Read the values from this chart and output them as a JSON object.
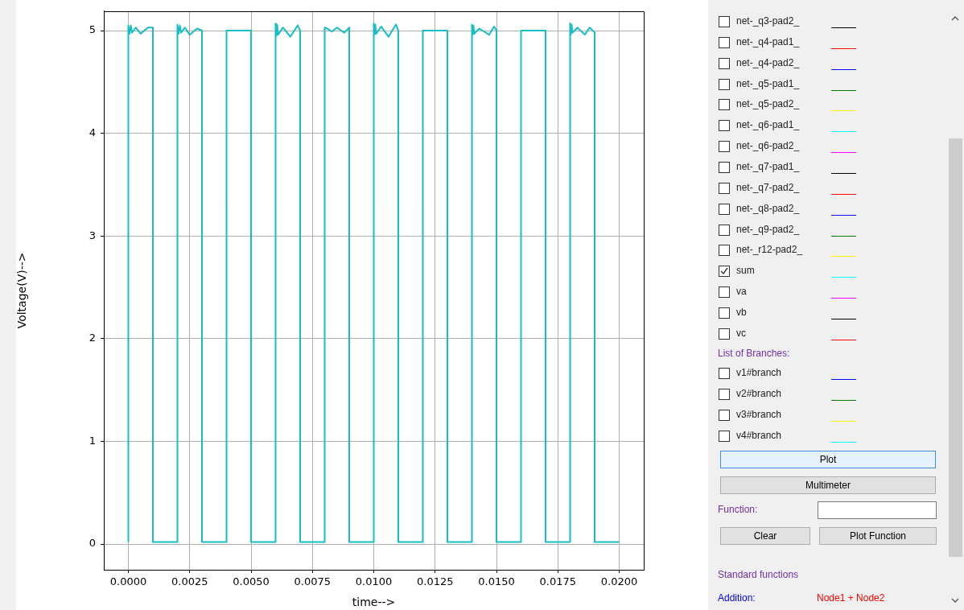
{
  "chart_data": [
    {
      "type": "line",
      "xlabel": "time-->",
      "ylabel": "Voltage(V)-->",
      "xlim": [
        -0.001,
        0.021
      ],
      "ylim": [
        -0.25,
        5.19
      ],
      "xticks": [
        {
          "value": 0,
          "label": "0.0000"
        },
        {
          "value": 0.0025,
          "label": "0.0025"
        },
        {
          "value": 0.005,
          "label": "0.0050"
        },
        {
          "value": 0.0075,
          "label": "0.0075"
        },
        {
          "value": 0.01,
          "label": "0.0100"
        },
        {
          "value": 0.0125,
          "label": "0.0125"
        },
        {
          "value": 0.015,
          "label": "0.0150"
        },
        {
          "value": 0.0175,
          "label": "0.0175"
        },
        {
          "value": 0.02,
          "label": "0.0200"
        }
      ],
      "yticks": [
        0,
        1,
        2,
        3,
        4,
        5
      ],
      "grid": true,
      "legend": false,
      "marker": "none",
      "line_style": "solid",
      "series": [
        {
          "color": "#17bfc4",
          "x": [
            0,
            0,
            5e-05,
            0.0001,
            0.00015,
            0.0003,
            0.0005,
            0.0008,
            0.001,
            0.001,
            0.002,
            0.002,
            0.00205,
            0.0021,
            0.00215,
            0.0023,
            0.0025,
            0.0028,
            0.003,
            0.003,
            0.004,
            0.004,
            0.005,
            0.005,
            0.006,
            0.006,
            0.00603,
            0.00606,
            0.0061,
            0.0063,
            0.0066,
            0.0069,
            0.007,
            0.007,
            0.008,
            0.008,
            0.0081,
            0.0083,
            0.0085,
            0.0088,
            0.009,
            0.009,
            0.01,
            0.01,
            0.01003,
            0.01006,
            0.0101,
            0.0103,
            0.0106,
            0.0109,
            0.011,
            0.011,
            0.012,
            0.012,
            0.013,
            0.013,
            0.014,
            0.014,
            0.01403,
            0.01406,
            0.0141,
            0.0143,
            0.0147,
            0.0149,
            0.015,
            0.015,
            0.016,
            0.016,
            0.017,
            0.017,
            0.018,
            0.018,
            0.01803,
            0.01806,
            0.0181,
            0.0183,
            0.0186,
            0.0188,
            0.019,
            0.019,
            0.02
          ],
          "values": [
            0.02,
            5.05,
            4.97,
            5.05,
            4.98,
            5.03,
            4.97,
            5.03,
            5.03,
            0.02,
            0.02,
            5.06,
            4.97,
            5.05,
            4.98,
            5.03,
            4.96,
            5.02,
            5.0,
            0.02,
            0.02,
            5.0,
            5.0,
            0.02,
            0.02,
            5.07,
            4.95,
            5.06,
            4.96,
            5.03,
            4.94,
            5.05,
            5.0,
            0.02,
            0.02,
            5.03,
            5.02,
            4.99,
            5.03,
            4.98,
            5.03,
            0.02,
            0.02,
            5.07,
            4.96,
            5.06,
            4.97,
            5.04,
            4.94,
            5.06,
            5.0,
            0.02,
            0.02,
            5.0,
            5.0,
            0.02,
            0.02,
            5.06,
            4.96,
            5.05,
            4.97,
            5.02,
            4.96,
            5.04,
            5.0,
            0.02,
            0.02,
            5.0,
            5.0,
            0.02,
            0.02,
            5.07,
            4.96,
            5.06,
            4.98,
            5.03,
            4.96,
            5.03,
            4.98,
            0.02,
            0.02
          ]
        }
      ]
    },
    {
      "type": "other",
      "annotations": [
        "net-_q3-pad2_",
        "net-_q4-pad1_",
        "net-_q4-pad2_",
        "net-_q5-pad1_",
        "net-_q5-pad2_",
        "net-_q6-pad1_",
        "net-_q6-pad2_",
        "net-_q7-pad1_",
        "net-_q7-pad2_",
        "net-_q8-pad2_",
        "net-_q9-pad2_",
        "net-_r12-pad2_",
        "sum",
        "va",
        "vb",
        "vc",
        "List of Branches:",
        "v1#branch",
        "v2#branch",
        "v3#branch",
        "v4#branch",
        "Plot",
        "Multimeter",
        "Function:",
        "Clear",
        "Plot Function",
        "Standard functions",
        "Addition:",
        "Node1 + Node2"
      ],
      "colors": [
        "#000000",
        "#ff0000",
        "#0000ff",
        "#008000",
        "#ffff00",
        "#00ffff",
        "#ff00ff",
        "#000000",
        "#ff0000",
        "#0000ff",
        "#008000",
        "#ffff00",
        "#00ffff",
        "#ff00ff",
        "#000000",
        "#ff0000",
        "#0000ff",
        "#008000",
        "#ffff00",
        "#00ffff"
      ]
    }
  ]
}
